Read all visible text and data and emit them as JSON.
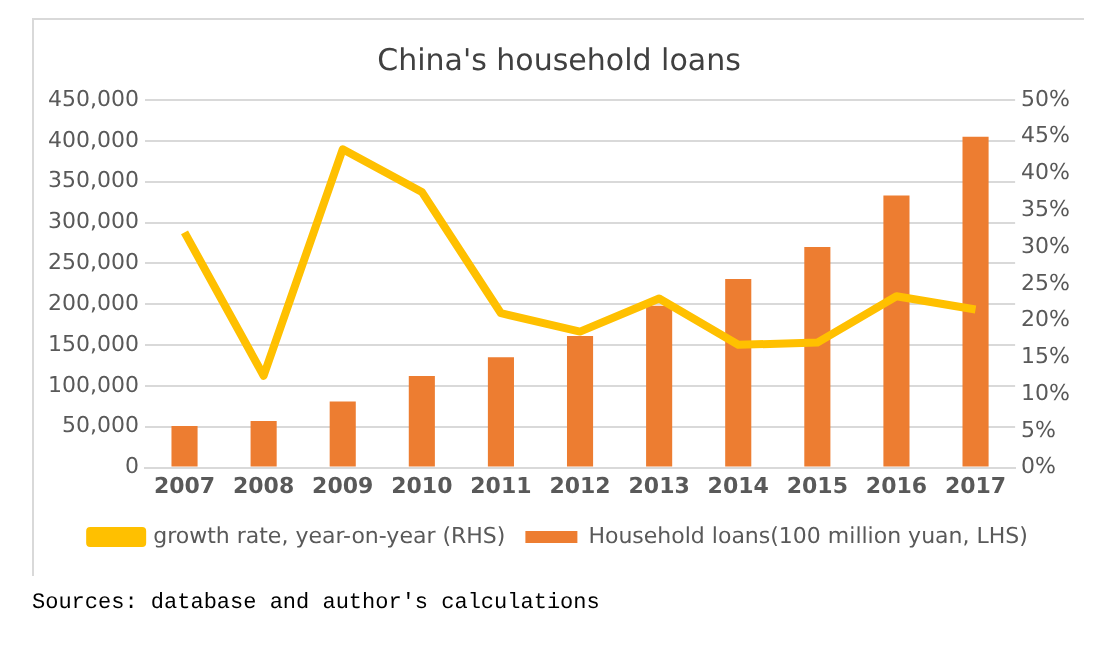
{
  "chart_data": {
    "type": "bar",
    "title": "China's household loans",
    "categories": [
      "2007",
      "2008",
      "2009",
      "2010",
      "2011",
      "2012",
      "2013",
      "2014",
      "2015",
      "2016",
      "2017"
    ],
    "series": [
      {
        "name": "Household loans(100 million yuan, LHS)",
        "color": "#ed7d31",
        "values": [
          51000,
          57000,
          81000,
          112000,
          135000,
          161000,
          198000,
          231000,
          270000,
          333000,
          405000
        ]
      },
      {
        "name": "growth rate, year-on-year (RHS)",
        "type": "line",
        "axis": "y2",
        "color": "#ffc000",
        "values": [
          32,
          12.5,
          43.3,
          37.5,
          21,
          18.5,
          23,
          16.7,
          17,
          23.3,
          21.5
        ]
      }
    ],
    "ylim": [
      0,
      450000
    ],
    "yticks": [
      0,
      {
        "value": 50000,
        "label": "50,000"
      },
      {
        "value": 100000,
        "label": "100,000"
      },
      {
        "value": 150000,
        "label": "150,000"
      },
      {
        "value": 200000,
        "label": "200,000"
      },
      {
        "value": 250000,
        "label": "250,000"
      },
      {
        "value": 300000,
        "label": "300,000"
      },
      {
        "value": 350000,
        "label": "350,000"
      },
      {
        "value": 400000,
        "label": "400,000"
      },
      {
        "value": 450000,
        "label": "450,000"
      }
    ],
    "y2lim": [
      0,
      50
    ],
    "y2ticks": [
      {
        "value": 0,
        "label": "0%"
      },
      {
        "value": 5,
        "label": "5%"
      },
      {
        "value": 10,
        "label": "10%"
      },
      {
        "value": 15,
        "label": "15%"
      },
      {
        "value": 20,
        "label": "20%"
      },
      {
        "value": 25,
        "label": "25%"
      },
      {
        "value": 30,
        "label": "30%"
      },
      {
        "value": 35,
        "label": "35%"
      },
      {
        "value": 40,
        "label": "40%"
      },
      {
        "value": 45,
        "label": "45%"
      },
      {
        "value": 50,
        "label": "50%"
      }
    ],
    "grid": "y",
    "legend": "bottom",
    "marker": "none",
    "annotations": [
      "Sources: database and author's calculations"
    ]
  }
}
